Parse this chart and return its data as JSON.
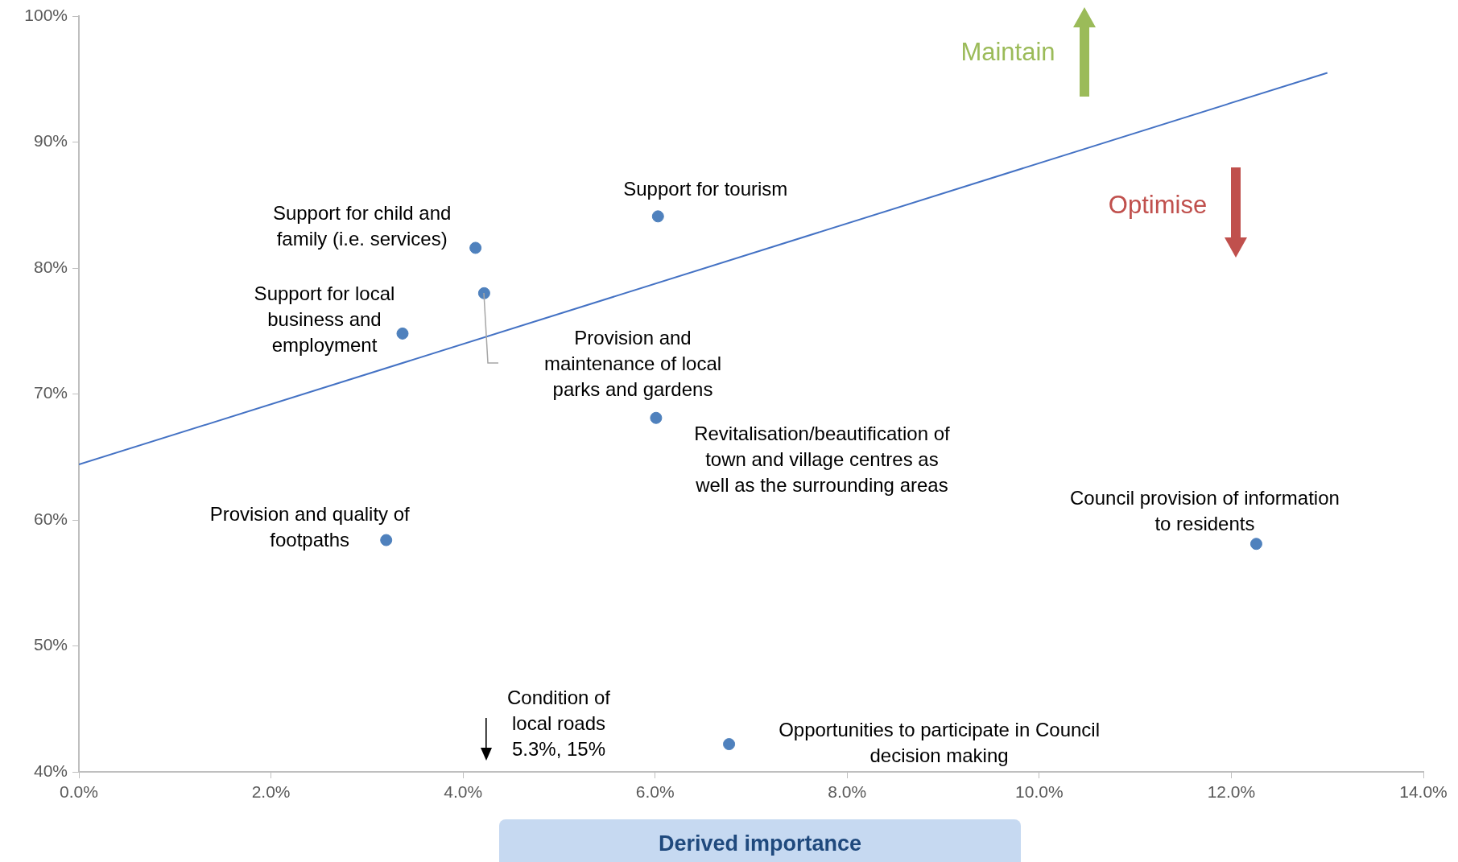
{
  "chart_data": {
    "type": "scatter",
    "xlabel": "Derived importance",
    "xlim": [
      0,
      14
    ],
    "xticks": [
      {
        "value": 0,
        "label": "0.0%"
      },
      {
        "value": 2,
        "label": "2.0%"
      },
      {
        "value": 4,
        "label": "4.0%"
      },
      {
        "value": 6,
        "label": "6.0%"
      },
      {
        "value": 8,
        "label": "8.0%"
      },
      {
        "value": 10,
        "label": "10.0%"
      },
      {
        "value": 12,
        "label": "12.0%"
      },
      {
        "value": 14,
        "label": "14.0%"
      }
    ],
    "ylim": [
      40,
      100
    ],
    "yticks": [
      {
        "value": 40,
        "label": "40%"
      },
      {
        "value": 50,
        "label": "50%"
      },
      {
        "value": 60,
        "label": "60%"
      },
      {
        "value": 70,
        "label": "70%"
      },
      {
        "value": 80,
        "label": "80%"
      },
      {
        "value": 90,
        "label": "90%"
      },
      {
        "value": 100,
        "label": "100%"
      }
    ],
    "grid": false,
    "legend": false,
    "marker": "circle",
    "series": [
      {
        "type": "scatter",
        "color": "#4f81bd",
        "x": [
          6.03,
          4.13,
          4.22,
          3.37,
          6.01,
          3.2,
          12.26,
          6.77
        ],
        "values": [
          84.1,
          81.6,
          78.0,
          74.8,
          68.1,
          58.4,
          58.1,
          42.2
        ]
      },
      {
        "type": "line",
        "marker": "none",
        "color": "#4472c4",
        "x": [
          0,
          13.0
        ],
        "values": [
          64.4,
          95.5
        ]
      }
    ],
    "annotations": [
      {
        "text": "Support for tourism",
        "x": 6.03,
        "y": 84.1
      },
      {
        "text": "Support for child and family (i.e. services)",
        "x": 4.13,
        "y": 81.6
      },
      "Provision and maintenance of local parks and gardens",
      {
        "text": "Support for local business and employment",
        "x": 3.37,
        "y": 74.8
      },
      {
        "text": "Revitalisation/beautification of town and village centres as well as the surrounding areas",
        "x": 6.01,
        "y": 68.1
      },
      {
        "text": "Provision and quality of footpaths",
        "x": 3.2,
        "y": 58.4
      },
      {
        "text": "Council provision of information to residents",
        "x": 12.26,
        "y": 58.1
      },
      {
        "text": "Opportunities to participate in Council decision making",
        "x": 6.77,
        "y": 42.2
      },
      "Maintain",
      "Optimise",
      "Condition of local roads 5.3%, 15%"
    ]
  }
}
